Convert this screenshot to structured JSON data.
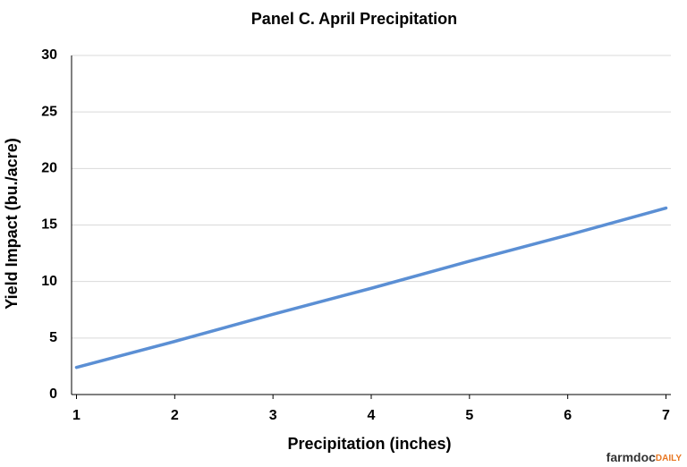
{
  "chart_data": {
    "type": "line",
    "title": "Panel C. April Precipitation",
    "x_label": "Precipitation (inches)",
    "y_label": "Yield Impact (bu./acre)",
    "x": [
      1,
      2,
      3,
      4,
      5,
      6,
      7
    ],
    "series": [
      {
        "color": "#5b8fd4",
        "values": [
          2.4,
          4.7,
          7.1,
          9.4,
          11.8,
          14.1,
          16.5
        ]
      }
    ],
    "xlim": [
      0.95,
      7.05
    ],
    "xticks": [
      1,
      2,
      3,
      4,
      5,
      6,
      7
    ],
    "ylim": [
      0,
      30
    ],
    "yticks": [
      0,
      5,
      10,
      15,
      20,
      25,
      30
    ],
    "grid": true,
    "watermark": {
      "main": "farmdoc",
      "accent": "DAILY"
    }
  }
}
